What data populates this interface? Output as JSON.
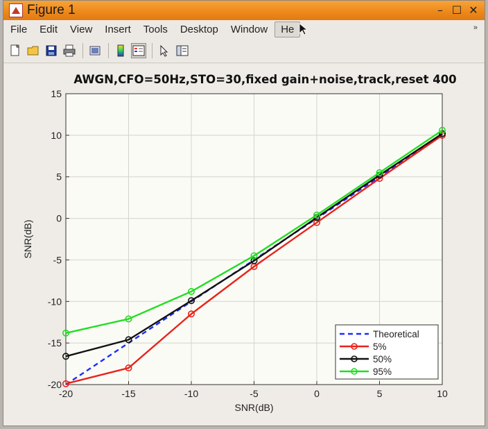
{
  "window": {
    "title": "Figure 1",
    "controls": {
      "minimize": "–",
      "maximize": "☐",
      "close": "✕"
    }
  },
  "menubar": {
    "items": [
      "File",
      "Edit",
      "View",
      "Insert",
      "Tools",
      "Desktop",
      "Window",
      "He"
    ],
    "hovered_index": 7,
    "overflow_glyph": "»"
  },
  "toolbar": {
    "buttons": [
      {
        "icon": "new-figure-icon"
      },
      {
        "icon": "open-file-icon"
      },
      {
        "icon": "save-icon"
      },
      {
        "icon": "print-icon"
      },
      {
        "icon": "link-plot-icon"
      },
      {
        "icon": "colorbar-icon"
      },
      {
        "icon": "legend-icon"
      },
      {
        "icon": "arrow-pointer-icon"
      },
      {
        "icon": "plot-browser-icon"
      }
    ]
  },
  "chart_data": {
    "type": "line",
    "title": "AWGN,CFO=50Hz,STO=30,fixed gain+noise,track,reset 400",
    "xlabel": "SNR(dB)",
    "ylabel": "SNR(dB)",
    "xlim": [
      -20,
      10
    ],
    "ylim": [
      -20,
      15
    ],
    "xticks": [
      -20,
      -15,
      -10,
      -5,
      0,
      5,
      10
    ],
    "yticks": [
      -20,
      -15,
      -10,
      -5,
      0,
      5,
      10,
      15
    ],
    "grid": true,
    "legend_position": "bottom-right",
    "x": [
      -20,
      -15,
      -10,
      -5,
      0,
      5,
      10
    ],
    "series": [
      {
        "name": "Theoretical",
        "color": "#1a2bff",
        "style": "dashed",
        "marker": "none",
        "values": [
          -20,
          -15,
          -10,
          -5,
          0,
          5,
          10
        ]
      },
      {
        "name": "5%",
        "color": "#e8231a",
        "style": "solid",
        "marker": "circle",
        "values": [
          -19.9,
          -18.0,
          -11.5,
          -5.8,
          -0.5,
          4.8,
          10.0
        ]
      },
      {
        "name": "50%",
        "color": "#111111",
        "style": "solid",
        "marker": "circle",
        "values": [
          -16.6,
          -14.6,
          -9.9,
          -5.1,
          0.1,
          5.2,
          10.2
        ]
      },
      {
        "name": "95%",
        "color": "#22dd22",
        "style": "solid",
        "marker": "circle",
        "values": [
          -13.8,
          -12.1,
          -8.8,
          -4.5,
          0.4,
          5.5,
          10.6
        ]
      }
    ]
  }
}
